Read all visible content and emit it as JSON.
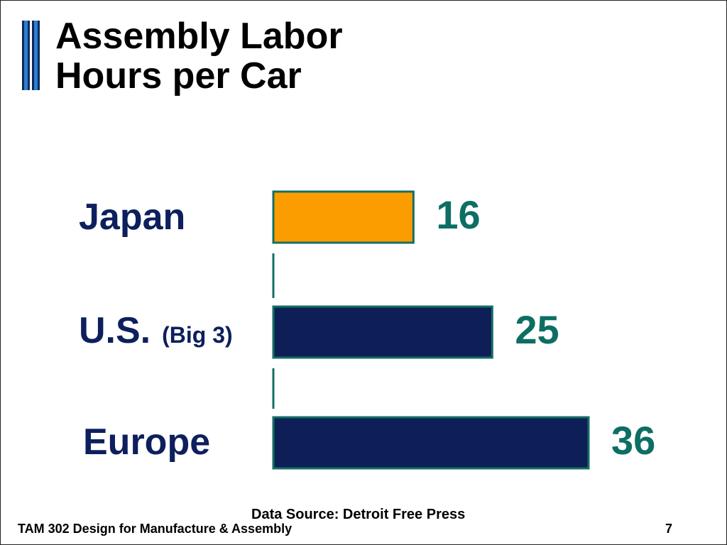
{
  "slide": {
    "title_lines": [
      "Assembly Labor",
      "Hours per Car"
    ],
    "source": "Data Source: Detroit Free Press",
    "course": "TAM 302 Design for Manufacture & Assembly",
    "page_number": "7"
  },
  "colors": {
    "label_text": "#0d1f5c",
    "value_text": "#0d6e63",
    "bar_outline": "#156f63",
    "deco_dark": "#0b2a5a",
    "deco_light": "#2c7fd0"
  },
  "chart_data": {
    "type": "bar",
    "orientation": "horizontal",
    "title": "Assembly Labor Hours per Car",
    "categories": [
      "Japan",
      "U.S.",
      "Europe"
    ],
    "category_notes": [
      "",
      "(Big 3)",
      ""
    ],
    "values": [
      16,
      25,
      36
    ],
    "bar_colors": [
      "#fb9d00",
      "#0d1f56",
      "#0d1f56"
    ],
    "data_labels": [
      "16",
      "25",
      "36"
    ],
    "xlim": [
      0,
      36
    ],
    "grid": false,
    "legend": "none"
  }
}
